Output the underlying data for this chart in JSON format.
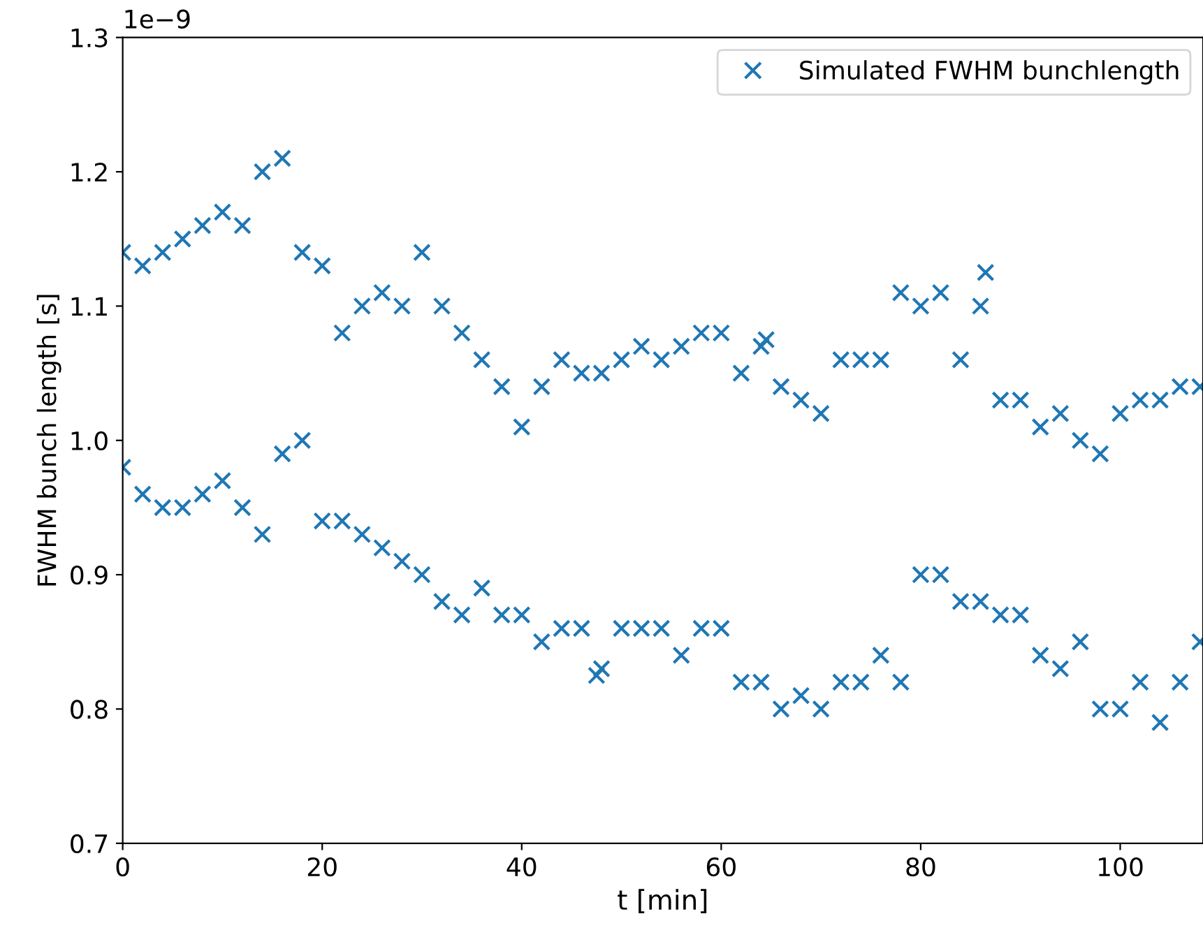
{
  "chart_data": {
    "type": "scatter",
    "xlabel": "t [min]",
    "ylabel": "FWHM bunch length [s]",
    "annotations": [
      "1e−9"
    ],
    "xlim": [
      0,
      108.3
    ],
    "xticks": [
      0,
      20,
      40,
      60,
      80,
      100
    ],
    "ylim": [
      0.7,
      1.3
    ],
    "yticks": [
      0.7,
      0.8,
      0.9,
      {
        "value": 1.0,
        "label": "1.0"
      },
      1.1,
      1.2,
      1.3
    ],
    "grid": false,
    "legend": "top right",
    "marker": "cross",
    "series": [
      {
        "name": "Simulated FWHM bunchlength",
        "color": "#1f77b4",
        "x": [
          0,
          0,
          2,
          2,
          4,
          4,
          6,
          6,
          8,
          8,
          10,
          10,
          12,
          12,
          14,
          14,
          16,
          16,
          18,
          18,
          20,
          20,
          22,
          22,
          24,
          24,
          26,
          26,
          28,
          28,
          30,
          30,
          32,
          32,
          34,
          34,
          36,
          36,
          38,
          38,
          40,
          40,
          42,
          42,
          44,
          44,
          46,
          46,
          48,
          48,
          50,
          50,
          52,
          52,
          54,
          54,
          56,
          56,
          58,
          58,
          60,
          60,
          62,
          62,
          64,
          64,
          66,
          66,
          68,
          68,
          70,
          70,
          72,
          72,
          74,
          74,
          76,
          76,
          78,
          78,
          80,
          80,
          82,
          82,
          84,
          84,
          86,
          86,
          88,
          88,
          90,
          90,
          92,
          92,
          94,
          94,
          96,
          96,
          98,
          98,
          100,
          100,
          102,
          102,
          104,
          104,
          106,
          106,
          108,
          108,
          47.5,
          64.5,
          86.5
        ],
        "values": [
          1.14,
          0.98,
          1.13,
          0.96,
          1.14,
          0.95,
          1.15,
          0.95,
          1.16,
          0.96,
          1.17,
          0.97,
          1.16,
          0.95,
          1.2,
          0.93,
          1.21,
          0.99,
          1.14,
          1.0,
          1.13,
          0.94,
          1.08,
          0.94,
          1.1,
          0.93,
          1.11,
          0.92,
          1.1,
          0.91,
          1.14,
          0.9,
          1.1,
          0.88,
          1.08,
          0.87,
          1.06,
          0.89,
          1.04,
          0.87,
          1.01,
          0.87,
          1.04,
          0.85,
          1.06,
          0.86,
          1.05,
          0.86,
          1.05,
          0.83,
          1.06,
          0.86,
          1.07,
          0.86,
          1.06,
          0.86,
          1.07,
          0.84,
          1.08,
          0.86,
          1.08,
          0.86,
          1.05,
          0.82,
          1.07,
          0.82,
          1.04,
          0.8,
          1.03,
          0.81,
          1.02,
          0.8,
          1.06,
          0.82,
          1.06,
          0.82,
          1.06,
          0.84,
          1.11,
          0.82,
          1.1,
          0.9,
          1.11,
          0.9,
          1.06,
          0.88,
          1.1,
          0.88,
          1.03,
          0.87,
          1.03,
          0.87,
          1.01,
          0.84,
          1.02,
          0.83,
          1.0,
          0.85,
          0.99,
          0.8,
          1.02,
          0.8,
          1.03,
          0.82,
          1.03,
          0.79,
          1.04,
          0.82,
          1.04,
          0.85,
          0.825,
          1.075,
          1.125
        ]
      }
    ]
  }
}
